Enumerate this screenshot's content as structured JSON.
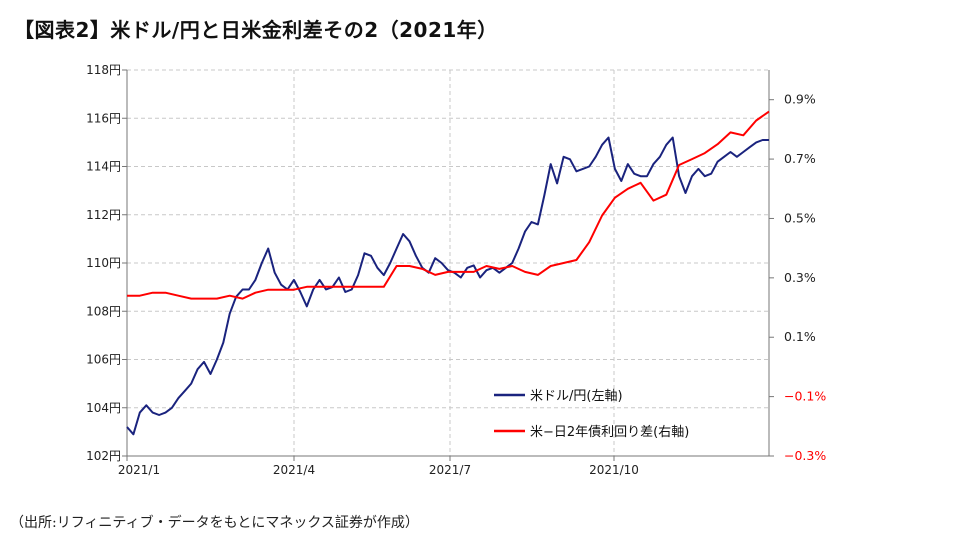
{
  "title": "【図表2】米ドル/円と日米金利差その2（2021年）",
  "source": "（出所:リフィニティブ・データをもとにマネックス証券が作成）",
  "chart_data": {
    "type": "line",
    "x_ticks": [
      "2021/1",
      "2021/4",
      "2021/7",
      "2021/10"
    ],
    "left_axis": {
      "ylim": [
        102,
        118
      ],
      "ticks": [
        102,
        104,
        106,
        108,
        110,
        112,
        114,
        116,
        118
      ],
      "tick_labels": [
        "102円",
        "104円",
        "106円",
        "108円",
        "110円",
        "112円",
        "114円",
        "116円",
        "118円"
      ]
    },
    "right_axis": {
      "ylim": [
        -0.3,
        1.0
      ],
      "ticks": [
        -0.3,
        -0.1,
        0.1,
        0.3,
        0.5,
        0.7,
        0.9
      ],
      "tick_labels": [
        "−0.3%",
        "−0.1%",
        "0.1%",
        "0.3%",
        "0.5%",
        "0.7%",
        "0.9%"
      ],
      "negative_color": "#ff0000"
    },
    "grid": true,
    "legend_position": "bottom-right",
    "series": [
      {
        "name": "米ドル/円(左軸)",
        "axis": "left",
        "color": "#1a237e",
        "x": [
          0,
          0.01,
          0.02,
          0.03,
          0.04,
          0.05,
          0.06,
          0.07,
          0.08,
          0.09,
          0.1,
          0.11,
          0.12,
          0.13,
          0.14,
          0.15,
          0.16,
          0.17,
          0.18,
          0.19,
          0.2,
          0.21,
          0.22,
          0.23,
          0.24,
          0.25,
          0.26,
          0.27,
          0.28,
          0.29,
          0.3,
          0.31,
          0.32,
          0.33,
          0.34,
          0.35,
          0.36,
          0.37,
          0.38,
          0.39,
          0.4,
          0.41,
          0.42,
          0.43,
          0.44,
          0.45,
          0.46,
          0.47,
          0.48,
          0.49,
          0.5,
          0.51,
          0.52,
          0.53,
          0.54,
          0.55,
          0.56,
          0.57,
          0.58,
          0.59,
          0.6,
          0.61,
          0.62,
          0.63,
          0.64,
          0.65,
          0.66,
          0.67,
          0.68,
          0.69,
          0.7,
          0.71,
          0.72,
          0.73,
          0.74,
          0.75,
          0.76,
          0.77,
          0.78,
          0.79,
          0.8,
          0.81,
          0.82,
          0.83,
          0.84,
          0.85,
          0.86,
          0.87,
          0.88,
          0.89,
          0.9,
          0.91,
          0.92,
          0.93,
          0.94,
          0.95,
          0.96,
          0.97,
          0.98,
          0.99,
          1.0
        ],
        "values": [
          103.2,
          102.9,
          103.8,
          104.1,
          103.8,
          103.7,
          103.8,
          104.0,
          104.4,
          104.7,
          105.0,
          105.6,
          105.9,
          105.4,
          106.0,
          106.7,
          107.9,
          108.6,
          108.9,
          108.9,
          109.3,
          110.0,
          110.6,
          109.6,
          109.1,
          108.9,
          109.3,
          108.8,
          108.2,
          108.9,
          109.3,
          108.9,
          109.0,
          109.4,
          108.8,
          108.9,
          109.5,
          110.4,
          110.3,
          109.8,
          109.5,
          110.0,
          110.6,
          111.2,
          110.9,
          110.3,
          109.8,
          109.6,
          110.2,
          110.0,
          109.7,
          109.6,
          109.4,
          109.8,
          109.9,
          109.4,
          109.7,
          109.8,
          109.6,
          109.8,
          110.0,
          110.6,
          111.3,
          111.7,
          111.6,
          112.8,
          114.1,
          113.3,
          114.4,
          114.3,
          113.8,
          113.9,
          114.0,
          114.4,
          114.9,
          115.2,
          113.9,
          113.4,
          114.1,
          113.7,
          113.6,
          113.6,
          114.1,
          114.4,
          114.9,
          115.2,
          113.6,
          112.9,
          113.6,
          113.9,
          113.6,
          113.7,
          114.2,
          114.4,
          114.6,
          114.4,
          114.6,
          114.8,
          115.0,
          115.1,
          115.1
        ]
      },
      {
        "name": "米−日2年債利回り差(右軸)",
        "axis": "right",
        "color": "#ff0000",
        "x": [
          0,
          0.02,
          0.04,
          0.06,
          0.08,
          0.1,
          0.12,
          0.14,
          0.16,
          0.18,
          0.2,
          0.22,
          0.24,
          0.26,
          0.28,
          0.3,
          0.32,
          0.34,
          0.36,
          0.38,
          0.4,
          0.42,
          0.44,
          0.46,
          0.48,
          0.5,
          0.52,
          0.54,
          0.56,
          0.58,
          0.6,
          0.62,
          0.64,
          0.66,
          0.68,
          0.7,
          0.72,
          0.74,
          0.76,
          0.78,
          0.8,
          0.82,
          0.84,
          0.86,
          0.88,
          0.9,
          0.92,
          0.94,
          0.96,
          0.98,
          1.0
        ],
        "values": [
          0.24,
          0.24,
          0.25,
          0.25,
          0.24,
          0.23,
          0.23,
          0.23,
          0.24,
          0.23,
          0.25,
          0.26,
          0.26,
          0.26,
          0.27,
          0.27,
          0.27,
          0.27,
          0.27,
          0.27,
          0.27,
          0.34,
          0.34,
          0.33,
          0.31,
          0.32,
          0.32,
          0.32,
          0.34,
          0.33,
          0.34,
          0.32,
          0.31,
          0.34,
          0.35,
          0.36,
          0.42,
          0.51,
          0.57,
          0.6,
          0.62,
          0.56,
          0.58,
          0.68,
          0.7,
          0.72,
          0.75,
          0.79,
          0.78,
          0.83,
          0.86
        ]
      }
    ]
  }
}
